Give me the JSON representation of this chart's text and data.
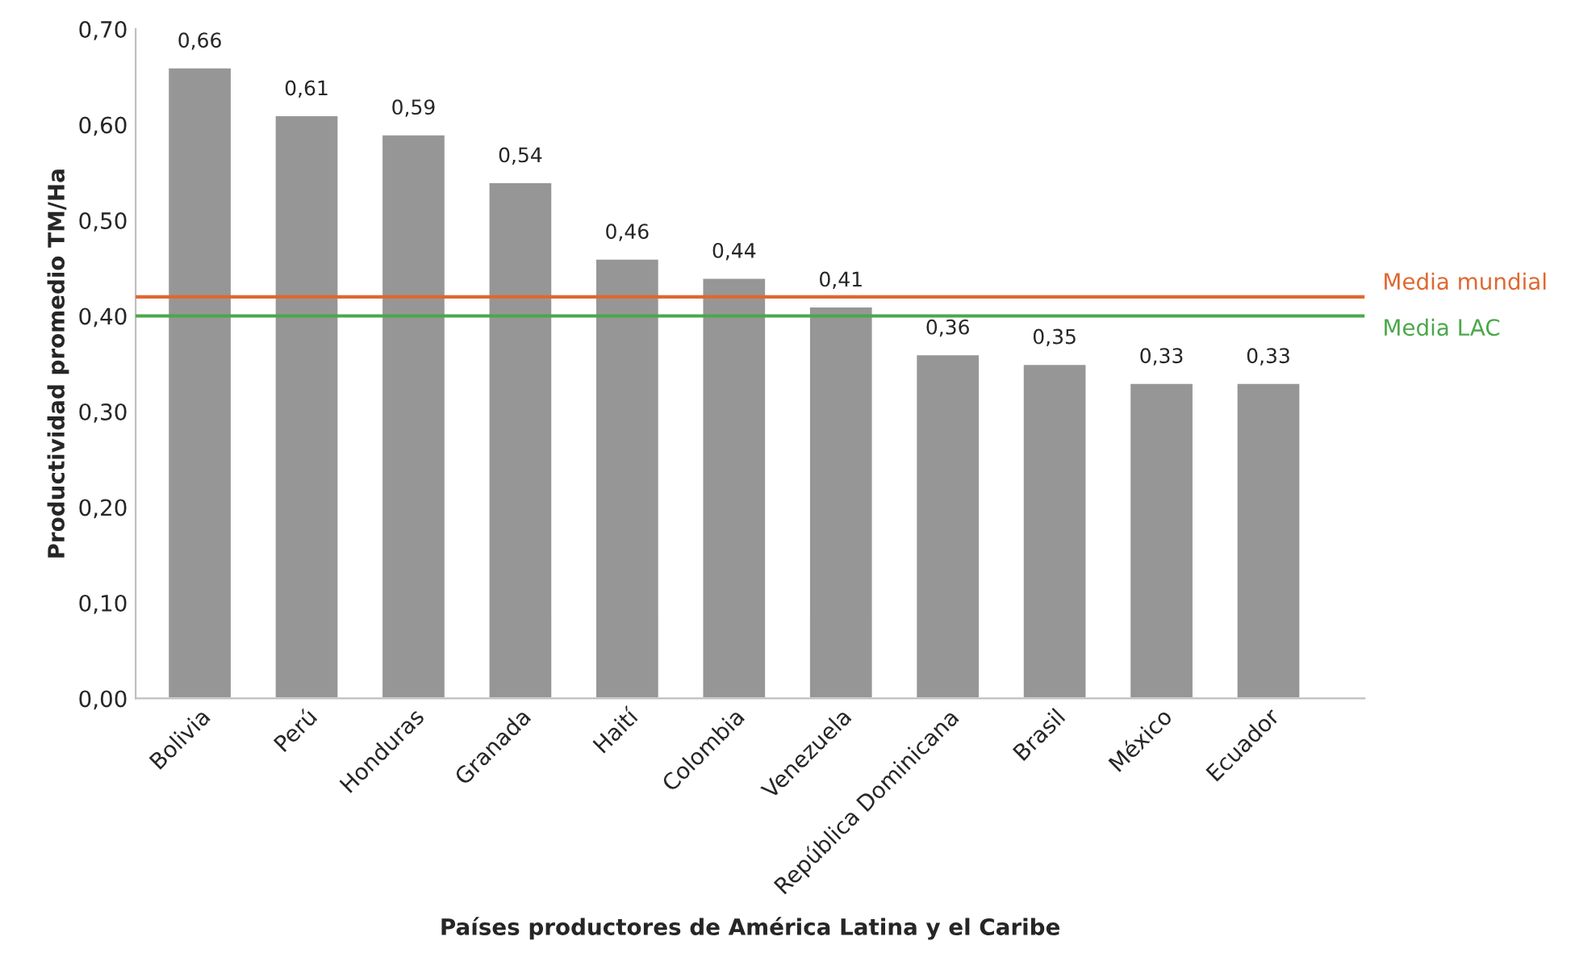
{
  "chart_data": {
    "type": "bar",
    "xlabel": "Países productores de América Latina y el Caribe",
    "ylabel": "Productividad promedio TM/Ha",
    "categories": [
      "Bolivia",
      "Perú",
      "Honduras",
      "Granada",
      "Haití",
      "Colombia",
      "Venezuela",
      "República Dominicana",
      "Brasil",
      "México",
      "Ecuador"
    ],
    "values": [
      0.66,
      0.61,
      0.59,
      0.54,
      0.46,
      0.44,
      0.41,
      0.36,
      0.35,
      0.33,
      0.33
    ],
    "value_labels": [
      "0,66",
      "0,61",
      "0,59",
      "0,54",
      "0,46",
      "0,44",
      "0,41",
      "0,36",
      "0,35",
      "0,33",
      "0,33"
    ],
    "color": "#969696",
    "ylim": [
      0,
      0.7
    ],
    "yticks": [
      {
        "value": 0,
        "label": "0,00"
      },
      {
        "value": 0.1,
        "label": "0,10"
      },
      {
        "value": 0.2,
        "label": "0,20"
      },
      {
        "value": 0.3,
        "label": "0,30"
      },
      {
        "value": 0.4,
        "label": "0,40"
      },
      {
        "value": 0.5,
        "label": "0,50"
      },
      {
        "value": 0.6,
        "label": "0,60"
      },
      {
        "value": 0.7,
        "label": "0,70"
      }
    ],
    "ref_lines": [
      {
        "axis": "y",
        "value": 0.42,
        "label": "Media mundial",
        "color": "#e0672f"
      },
      {
        "axis": "y",
        "value": 0.4,
        "label": "Media LAC",
        "color": "#4aa84a"
      }
    ],
    "grid": false,
    "legend": false
  }
}
